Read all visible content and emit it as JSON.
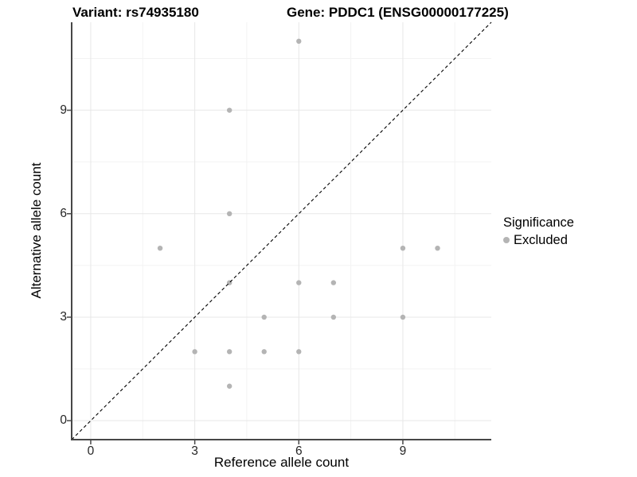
{
  "title": {
    "left": "Variant: rs74935180",
    "right": "Gene: PDDC1 (ENSG00000177225)"
  },
  "legend": {
    "title": "Significance",
    "items": [
      {
        "label": "Excluded",
        "color": "#b4b4b4"
      }
    ]
  },
  "colors": {
    "point": "#b4b4b4",
    "grid_major": "#e7e7e7",
    "grid_minor": "#f3f3f3",
    "axis_line": "#474747",
    "tick_mark": "#474747"
  },
  "chart_data": {
    "type": "scatter",
    "title": "Variant: rs74935180 — Gene: PDDC1 (ENSG00000177225)",
    "xlabel": "Reference allele count",
    "ylabel": "Alternative allele count",
    "xlim": [
      -0.55,
      11.55
    ],
    "ylim": [
      -0.55,
      11.55
    ],
    "xticks": [
      0,
      3,
      6,
      9
    ],
    "yticks": [
      0,
      3,
      6,
      9
    ],
    "minor_gridlines_x": [
      1.5,
      4.5,
      7.5,
      10.5
    ],
    "minor_gridlines_y": [
      1.5,
      4.5,
      7.5,
      10.5
    ],
    "grid": true,
    "legend_position": "right",
    "series": [
      {
        "name": "Excluded",
        "color": "#b4b4b4",
        "points": [
          [
            2,
            5
          ],
          [
            3,
            2
          ],
          [
            4,
            1
          ],
          [
            4,
            2
          ],
          [
            4,
            4
          ],
          [
            4,
            6
          ],
          [
            4,
            9
          ],
          [
            5,
            2
          ],
          [
            5,
            3
          ],
          [
            6,
            2
          ],
          [
            6,
            4
          ],
          [
            6,
            11
          ],
          [
            7,
            3
          ],
          [
            7,
            4
          ],
          [
            9,
            3
          ],
          [
            9,
            5
          ],
          [
            10,
            5
          ]
        ]
      }
    ],
    "reference_line": {
      "slope": 1,
      "intercept": 0,
      "style": "dashed",
      "color": "#000000"
    }
  }
}
